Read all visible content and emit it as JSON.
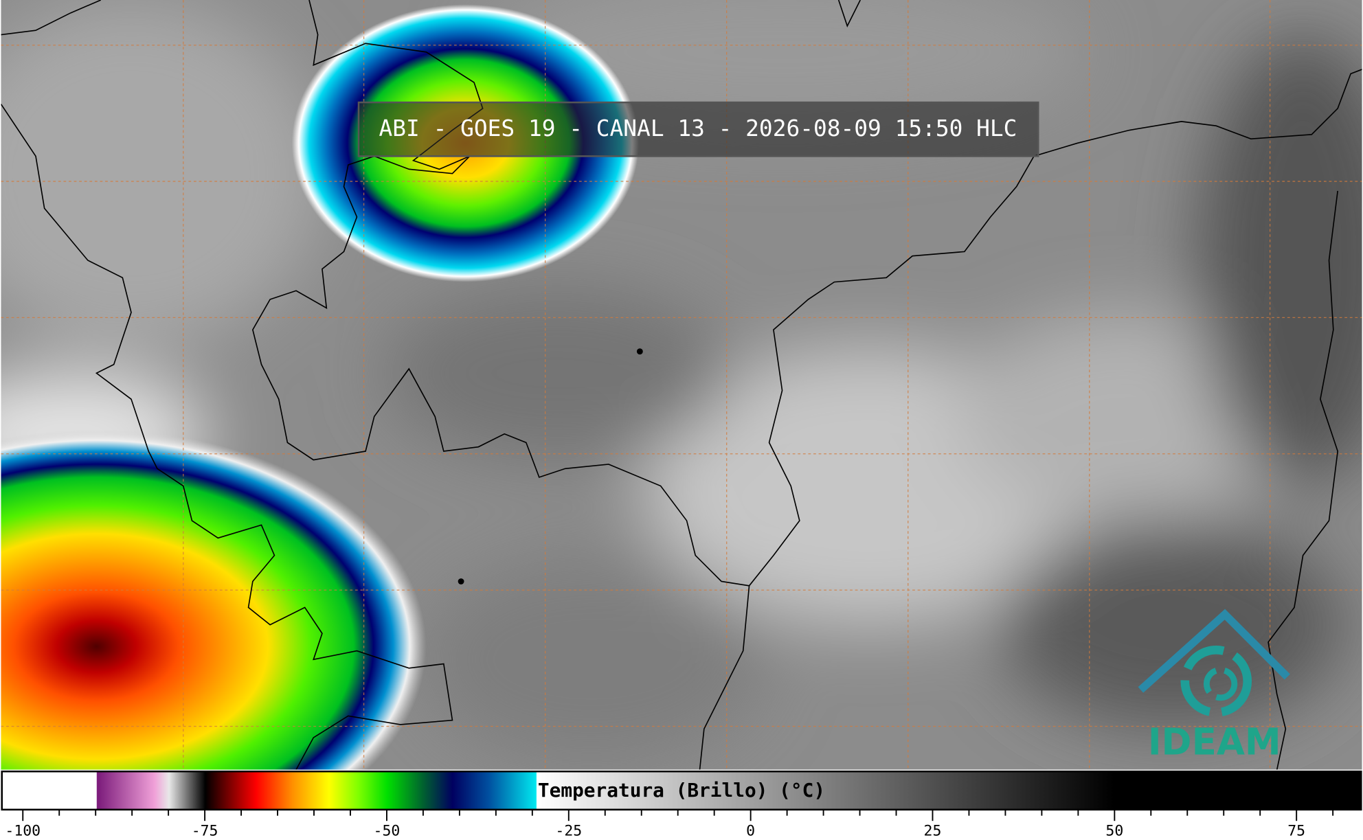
{
  "title": "ABI - GOES 19 - CANAL 13 - 2026-08-09 15:50 HLC",
  "logo": "IDEAM",
  "colorbar": {
    "label": "Temperatura (Brillo) (°C)",
    "lim": [
      -103,
      84
    ],
    "ticks": [
      -100,
      -75,
      -50,
      -25,
      0,
      25,
      50,
      75
    ],
    "minor_ticks": [
      -95,
      -90,
      -85,
      -80,
      -70,
      -65,
      -60,
      -55,
      -45,
      -40,
      -35,
      -30,
      -20,
      -15,
      -10,
      -5,
      5,
      10,
      15,
      20,
      30,
      35,
      40,
      45,
      55,
      60,
      65,
      70,
      80
    ],
    "colormap": [
      [
        -103,
        "#ffffff"
      ],
      [
        -90,
        "#ffffff"
      ],
      [
        -89.9,
        "#7a1a7a"
      ],
      [
        -82,
        "#f0a0d8"
      ],
      [
        -80,
        "#e8e8e8"
      ],
      [
        -75,
        "#000000"
      ],
      [
        -72,
        "#700000"
      ],
      [
        -68,
        "#ff0000"
      ],
      [
        -63,
        "#ff9000"
      ],
      [
        -58,
        "#ffff00"
      ],
      [
        -54,
        "#80ff00"
      ],
      [
        -50,
        "#00e000"
      ],
      [
        -45,
        "#006030"
      ],
      [
        -41,
        "#000060"
      ],
      [
        -36,
        "#0050a0"
      ],
      [
        -29.5,
        "#00e8f0"
      ],
      [
        -29.4,
        "#ffffff"
      ],
      [
        50,
        "#000000"
      ],
      [
        84,
        "#000000"
      ]
    ]
  }
}
